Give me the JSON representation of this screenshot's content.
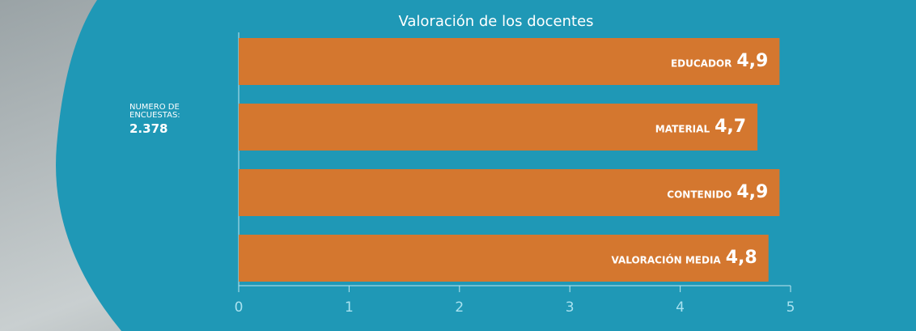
{
  "chart_data": {
    "type": "bar",
    "orientation": "horizontal",
    "title": "Valoración de los docentes",
    "categories": [
      "EDUCADOR",
      "MATERIAL",
      "CONTENIDO",
      "VALORACIÓN MEDIA"
    ],
    "values": [
      4.9,
      4.7,
      4.9,
      4.8
    ],
    "value_labels": [
      "4,9",
      "4,7",
      "4,9",
      "4,8"
    ],
    "color": "#d4772f",
    "xlim": [
      0,
      5
    ],
    "xticks": [
      0,
      1,
      2,
      3,
      4,
      5
    ],
    "annotation": {
      "label": "NÚMERO DE ENCUESTAS:",
      "value": "2.378"
    }
  }
}
